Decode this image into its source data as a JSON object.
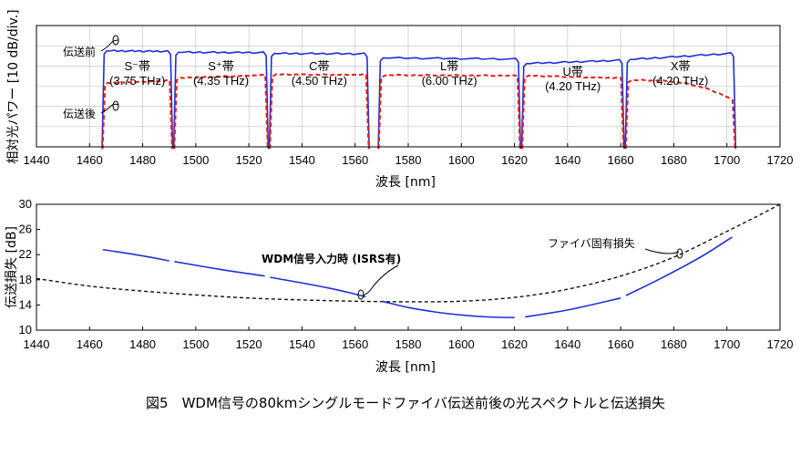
{
  "caption": "図5　WDM信号の80kmシングルモードファイバ伝送前後の光スペクトルと伝送損失",
  "chart_data": [
    {
      "type": "line",
      "title": "",
      "xlabel": "波長 [nm]",
      "ylabel": "相対光パワー [10 dB/div.]",
      "xlim": [
        1440,
        1720
      ],
      "x_ticks": [
        1440,
        1460,
        1480,
        1500,
        1520,
        1540,
        1560,
        1580,
        1600,
        1620,
        1640,
        1660,
        1680,
        1700,
        1720
      ],
      "y_div_count": 6,
      "grid": true,
      "series_labels": {
        "before": "伝送前",
        "after": "伝送後"
      },
      "bands": [
        {
          "name": "S⁻帯",
          "bw": "(3.75 THz)",
          "x0": 1465.5,
          "x1": 1490.5,
          "before": [
            4.75,
            4.72
          ],
          "after": [
            3.15,
            3.28
          ]
        },
        {
          "name": "S⁺帯",
          "bw": "(4.35 THz)",
          "x0": 1492.5,
          "x1": 1526.5,
          "before": [
            4.68,
            4.66
          ],
          "after": [
            3.4,
            3.55
          ]
        },
        {
          "name": "C帯",
          "bw": "(4.50 THz)",
          "x0": 1528.5,
          "x1": 1564.5,
          "before": [
            4.62,
            4.6
          ],
          "after": [
            3.58,
            3.56
          ]
        },
        {
          "name": "L帯",
          "bw": "(6.00 THz)",
          "x0": 1569.5,
          "x1": 1621.5,
          "before": [
            4.4,
            4.34
          ],
          "after": [
            3.55,
            3.52
          ]
        },
        {
          "name": "U帯",
          "bw": "(4.20 THz)",
          "x0": 1623.5,
          "x1": 1660.5,
          "before": [
            4.12,
            4.28
          ],
          "after": [
            3.52,
            3.4
          ]
        },
        {
          "name": "X帯",
          "bw": "(4.20 THz)",
          "x0": 1662.5,
          "x1": 1702.5,
          "before": [
            4.32,
            4.62
          ],
          "after": [
            3.3,
            2.3
          ]
        }
      ]
    },
    {
      "type": "line",
      "title": "",
      "xlabel": "波長 [nm]",
      "ylabel": "伝送損失 [dB]",
      "xlim": [
        1440,
        1720
      ],
      "ylim": [
        10,
        30
      ],
      "x_ticks": [
        1440,
        1460,
        1480,
        1500,
        1520,
        1540,
        1560,
        1580,
        1600,
        1620,
        1640,
        1660,
        1680,
        1700,
        1720
      ],
      "y_ticks": [
        10,
        14,
        18,
        22,
        26,
        30
      ],
      "grid": false,
      "series": [
        {
          "name": "WDM信号入力時 (ISRS有)",
          "style": "solid-blue",
          "segments": [
            {
              "x": [
                1465,
                1480,
                1490
              ],
              "y": [
                22.8,
                21.8,
                21.0
              ]
            },
            {
              "x": [
                1492,
                1510,
                1526
              ],
              "y": [
                20.9,
                19.6,
                18.6
              ]
            },
            {
              "x": [
                1528,
                1550,
                1564
              ],
              "y": [
                18.4,
                16.7,
                15.3
              ]
            },
            {
              "x": [
                1570,
                1580,
                1590,
                1600,
                1610,
                1620
              ],
              "y": [
                14.6,
                13.6,
                12.9,
                12.4,
                12.1,
                12.0
              ]
            },
            {
              "x": [
                1624,
                1640,
                1660
              ],
              "y": [
                12.1,
                13.2,
                15.1
              ]
            },
            {
              "x": [
                1662,
                1675,
                1690,
                1702
              ],
              "y": [
                15.5,
                18.2,
                21.6,
                24.8
              ]
            }
          ]
        },
        {
          "name": "ファイバ固有損失",
          "style": "dashed-black",
          "x": [
            1440,
            1460,
            1480,
            1500,
            1520,
            1540,
            1560,
            1580,
            1600,
            1620,
            1640,
            1660,
            1680,
            1700,
            1710,
            1720
          ],
          "y": [
            18.2,
            17.0,
            16.2,
            15.6,
            15.1,
            14.8,
            14.6,
            14.5,
            14.6,
            15.2,
            16.5,
            18.6,
            21.6,
            25.7,
            27.8,
            30.0
          ]
        }
      ]
    }
  ]
}
